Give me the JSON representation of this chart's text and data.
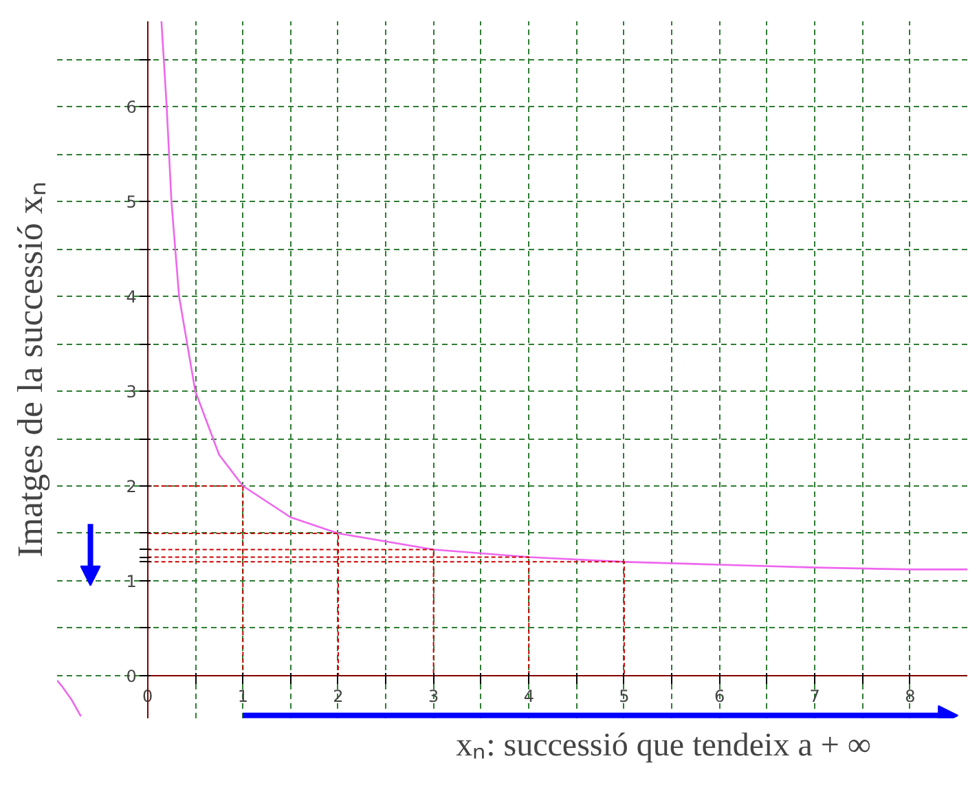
{
  "chart_data": {
    "type": "line",
    "xlabel": "xₙ: successió que tendeix a + ∞",
    "ylabel": "Imatges de la successió xₙ",
    "xlim": [
      -0.95,
      8.6
    ],
    "ylim": [
      -0.45,
      6.9
    ],
    "xticks": [
      0,
      {
        "value": 0.5,
        "label": null
      },
      1,
      {
        "value": 1.5,
        "label": null
      },
      2,
      {
        "value": 2.5,
        "label": null
      },
      3,
      {
        "value": 3.5,
        "label": null
      },
      4,
      {
        "value": 4.5,
        "label": null
      },
      5,
      {
        "value": 5.5,
        "label": null
      },
      6,
      {
        "value": 6.5,
        "label": null
      },
      7,
      {
        "value": 7.5,
        "label": null
      },
      8
    ],
    "yticks": [
      0,
      {
        "value": 0.5,
        "label": null
      },
      1,
      {
        "value": 1.2,
        "label": null
      },
      {
        "value": 1.25,
        "label": null
      },
      {
        "value": 1.33,
        "label": null
      },
      {
        "value": 1.5,
        "label": null
      },
      2,
      {
        "value": 2.5,
        "label": null
      },
      3,
      {
        "value": 3.5,
        "label": null
      },
      4,
      {
        "value": 4.5,
        "label": null
      },
      5,
      {
        "value": 5.5,
        "label": null
      },
      6,
      {
        "value": 6.5,
        "label": null
      }
    ],
    "grid": true,
    "marker": "none",
    "ref_lines": [
      {
        "axis": "y",
        "value": 0,
        "color": "#800000"
      }
    ],
    "series": [
      {
        "color": "#ee66ee",
        "x": [
          0.145,
          0.2,
          0.25,
          0.33,
          0.5,
          0.75,
          1,
          1.5,
          2,
          3,
          4,
          5,
          6,
          7,
          8,
          8.6
        ],
        "values": [
          6.9,
          6,
          5,
          4,
          3,
          2.33,
          2,
          1.67,
          1.5,
          1.33,
          1.25,
          1.2,
          1.17,
          1.14,
          1.12,
          1.12
        ]
      },
      {
        "color": "#ee66ee",
        "x": [
          -0.95,
          -0.9,
          -0.8,
          -0.7
        ],
        "values": [
          -0.05,
          -0.11,
          -0.25,
          -0.43
        ]
      },
      {
        "color": "#cc0000",
        "line_style": "dashed",
        "x": [
          0,
          1,
          1
        ],
        "values": [
          2,
          2,
          0
        ]
      },
      {
        "color": "#cc0000",
        "line_style": "dashed",
        "x": [
          0,
          2,
          2
        ],
        "values": [
          1.5,
          1.5,
          0
        ]
      },
      {
        "color": "#cc0000",
        "line_style": "dashed",
        "x": [
          0,
          3,
          3
        ],
        "values": [
          1.33,
          1.33,
          0
        ]
      },
      {
        "color": "#cc0000",
        "line_style": "dashed",
        "x": [
          0,
          4,
          4
        ],
        "values": [
          1.25,
          1.25,
          0
        ]
      },
      {
        "color": "#cc0000",
        "line_style": "dashed",
        "x": [
          0,
          5,
          5
        ],
        "values": [
          1.2,
          1.2,
          0
        ]
      }
    ]
  }
}
